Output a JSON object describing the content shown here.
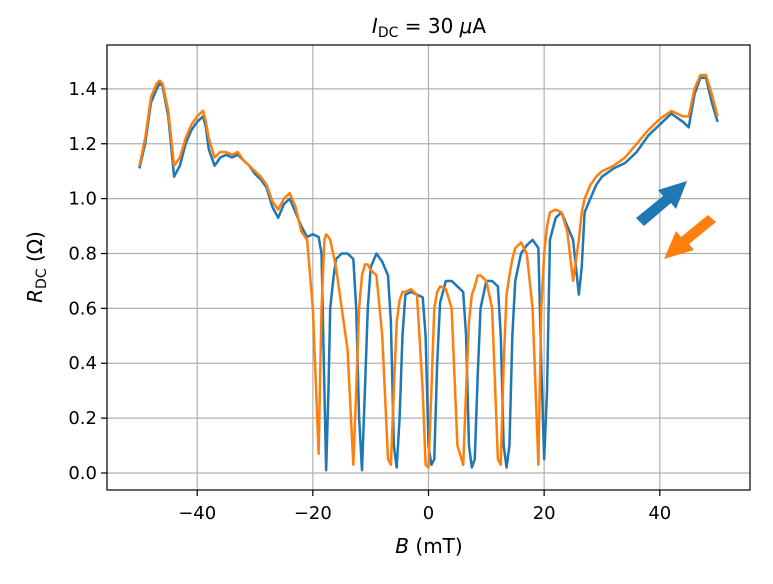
{
  "chart_data": {
    "type": "line",
    "title": [
      "I",
      "DC",
      " = 30 ",
      "μ",
      "A"
    ],
    "xlabel": [
      "B",
      " (mT)"
    ],
    "ylabel": [
      "R",
      "DC",
      " (Ω)"
    ],
    "xlim": [
      -55.6,
      55.6
    ],
    "ylim": [
      -0.062,
      1.56
    ],
    "xticks": [
      {
        "value": -40,
        "label": "−40"
      },
      {
        "value": -20,
        "label": "−20"
      },
      0,
      20,
      40
    ],
    "yticks": [
      {
        "value": 0,
        "label": "0.0"
      },
      0.2,
      0.4,
      0.6,
      0.8,
      {
        "value": 1,
        "label": "1.0"
      },
      1.2,
      1.4
    ],
    "grid": true,
    "x": [
      -50,
      -49,
      -48,
      -47,
      -46.5,
      -46,
      -45,
      -44,
      -43,
      -42,
      -41,
      -40,
      -39,
      -38.5,
      -38,
      -37,
      -36,
      -35,
      -34,
      -33,
      -32,
      -31,
      -30,
      -29,
      -28,
      -27,
      -26,
      -25,
      -24,
      -23,
      -22,
      -21,
      -20,
      -19,
      -18.5,
      -18,
      -17.7,
      -17.3,
      -17,
      -16.5,
      -16,
      -15,
      -14,
      -13,
      -12.5,
      -12,
      -11.5,
      -11,
      -10.5,
      -10,
      -9,
      -8,
      -7,
      -6.5,
      -6,
      -5.5,
      -5,
      -4.5,
      -4,
      -3,
      -2,
      -1,
      -0.5,
      0,
      0.5,
      1,
      1.5,
      2,
      3,
      4,
      5,
      6,
      6.5,
      7,
      7.5,
      8,
      8.5,
      9,
      10,
      11,
      12,
      12.5,
      13,
      13.5,
      14,
      14.5,
      15,
      16,
      17,
      18,
      19,
      19.5,
      20,
      20.5,
      21,
      22,
      23,
      24,
      25,
      26,
      26.5,
      27,
      28,
      29,
      30,
      32,
      34,
      36,
      38,
      40,
      42,
      44,
      45,
      46,
      47,
      48,
      49,
      50
    ],
    "series": [
      {
        "color": "#1f77b4",
        "values": [
          1.11,
          1.2,
          1.35,
          1.4,
          1.42,
          1.41,
          1.3,
          1.08,
          1.12,
          1.2,
          1.25,
          1.28,
          1.3,
          1.26,
          1.18,
          1.12,
          1.15,
          1.16,
          1.15,
          1.16,
          1.14,
          1.12,
          1.09,
          1.07,
          1.04,
          0.97,
          0.93,
          0.98,
          1.0,
          0.95,
          0.9,
          0.86,
          0.87,
          0.86,
          0.8,
          0.3,
          0.01,
          0.3,
          0.6,
          0.7,
          0.78,
          0.8,
          0.8,
          0.78,
          0.6,
          0.2,
          0.01,
          0.3,
          0.6,
          0.75,
          0.8,
          0.77,
          0.72,
          0.55,
          0.1,
          0.02,
          0.2,
          0.5,
          0.65,
          0.66,
          0.65,
          0.64,
          0.5,
          0.1,
          0.03,
          0.05,
          0.4,
          0.62,
          0.7,
          0.7,
          0.68,
          0.66,
          0.5,
          0.1,
          0.02,
          0.05,
          0.35,
          0.6,
          0.7,
          0.7,
          0.68,
          0.5,
          0.1,
          0.02,
          0.1,
          0.5,
          0.7,
          0.8,
          0.83,
          0.85,
          0.82,
          0.4,
          0.05,
          0.3,
          0.85,
          0.93,
          0.95,
          0.9,
          0.85,
          0.65,
          0.75,
          0.95,
          1.0,
          1.05,
          1.08,
          1.11,
          1.13,
          1.17,
          1.23,
          1.27,
          1.31,
          1.28,
          1.26,
          1.38,
          1.44,
          1.44,
          1.35,
          1.28
        ]
      },
      {
        "color": "#ff7f0e",
        "values": [
          1.12,
          1.22,
          1.37,
          1.42,
          1.43,
          1.42,
          1.32,
          1.12,
          1.15,
          1.22,
          1.27,
          1.3,
          1.32,
          1.28,
          1.22,
          1.15,
          1.17,
          1.17,
          1.16,
          1.17,
          1.14,
          1.12,
          1.1,
          1.08,
          1.05,
          0.99,
          0.96,
          1.0,
          1.02,
          0.97,
          0.88,
          0.85,
          0.6,
          0.07,
          0.6,
          0.85,
          0.87,
          0.86,
          0.85,
          0.8,
          0.75,
          0.6,
          0.45,
          0.03,
          0.3,
          0.6,
          0.72,
          0.76,
          0.76,
          0.74,
          0.72,
          0.5,
          0.05,
          0.03,
          0.3,
          0.55,
          0.63,
          0.66,
          0.66,
          0.67,
          0.65,
          0.3,
          0.03,
          0.02,
          0.3,
          0.6,
          0.66,
          0.68,
          0.67,
          0.6,
          0.1,
          0.03,
          0.3,
          0.55,
          0.65,
          0.68,
          0.72,
          0.72,
          0.7,
          0.6,
          0.05,
          0.03,
          0.4,
          0.65,
          0.72,
          0.78,
          0.82,
          0.84,
          0.8,
          0.6,
          0.03,
          0.6,
          0.8,
          0.9,
          0.95,
          0.96,
          0.95,
          0.88,
          0.7,
          0.85,
          0.95,
          1.0,
          1.05,
          1.08,
          1.1,
          1.12,
          1.15,
          1.2,
          1.25,
          1.29,
          1.32,
          1.3,
          1.3,
          1.4,
          1.45,
          1.45,
          1.38,
          1.3
        ]
      }
    ]
  }
}
